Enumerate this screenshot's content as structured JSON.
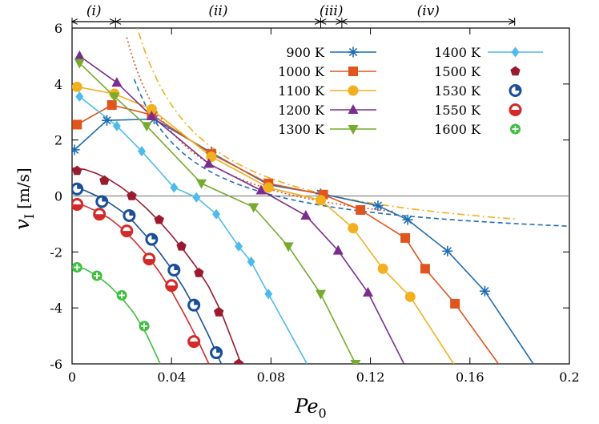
{
  "chart_data": {
    "type": "line",
    "xlabel_main": "Pe",
    "xlabel_sub": "0",
    "ylabel_main": "v",
    "ylabel_sub": "I",
    "ylabel_unit": "[m/s]",
    "xlim": [
      0,
      0.2
    ],
    "ylim": [
      -6,
      6
    ],
    "x_ticks": [
      {
        "v": 0,
        "label": "0"
      },
      {
        "v": 0.04,
        "label": "0.04"
      },
      {
        "v": 0.08,
        "label": "0.08"
      },
      {
        "v": 0.12,
        "label": "0.12"
      },
      {
        "v": 0.16,
        "label": "0.16"
      },
      {
        "v": 0.2,
        "label": "0.2"
      }
    ],
    "y_ticks": [
      {
        "v": 6,
        "label": "6"
      },
      {
        "v": 4,
        "label": "4"
      },
      {
        "v": 2,
        "label": "2"
      },
      {
        "v": 0,
        "label": "0"
      },
      {
        "v": -2,
        "label": "-2"
      },
      {
        "v": -4,
        "label": "-4"
      },
      {
        "v": -6,
        "label": "-6"
      }
    ],
    "zero_line": true,
    "regimes": [
      {
        "label": "(i)",
        "x_start": 0,
        "x_end": 0.0175
      },
      {
        "label": "(ii)",
        "x_start": 0.0175,
        "x_end": 0.1
      },
      {
        "label": "(iii)",
        "x_start": 0.1,
        "x_end": 0.1085
      },
      {
        "label": "(iv)",
        "x_start": 0.1085,
        "x_end": 0.178
      }
    ],
    "series": [
      {
        "name": "900 K",
        "color": "#1f6cb0",
        "marker": "asterisk",
        "marker_x": [
          0.001,
          0.014,
          0.033,
          0.056,
          0.079,
          0.1,
          0.123,
          0.135,
          0.151,
          0.166
        ],
        "marker_y": [
          1.65,
          2.7,
          2.75,
          1.55,
          0.4,
          0.08,
          -0.35,
          -0.85,
          -1.97,
          -3.4
        ],
        "curve_x": [
          0.001,
          0.014,
          0.033,
          0.056,
          0.079,
          0.1,
          0.123,
          0.135,
          0.151,
          0.166,
          0.1855
        ],
        "curve_y": [
          1.65,
          2.7,
          2.75,
          1.55,
          0.4,
          0.08,
          -0.35,
          -0.85,
          -1.97,
          -3.4,
          -6.0
        ]
      },
      {
        "name": "1000 K",
        "color": "#e0541e",
        "marker": "square",
        "marker_x": [
          0.002,
          0.016,
          0.032,
          0.056,
          0.079,
          0.101,
          0.116,
          0.134,
          0.142,
          0.154
        ],
        "marker_y": [
          2.55,
          3.25,
          2.9,
          1.5,
          0.45,
          0.05,
          -0.5,
          -1.5,
          -2.6,
          -3.85
        ],
        "curve_x": [
          0.002,
          0.016,
          0.032,
          0.056,
          0.079,
          0.101,
          0.116,
          0.134,
          0.142,
          0.154,
          0.1715
        ],
        "curve_y": [
          2.55,
          3.25,
          2.9,
          1.5,
          0.45,
          0.05,
          -0.5,
          -1.5,
          -2.6,
          -3.85,
          -6.0
        ]
      },
      {
        "name": "1100 K",
        "color": "#f2b01e",
        "marker": "circle",
        "marker_x": [
          0.002,
          0.017,
          0.032,
          0.056,
          0.079,
          0.1,
          0.113,
          0.125,
          0.136
        ],
        "marker_y": [
          3.9,
          3.65,
          3.1,
          1.4,
          0.3,
          -0.15,
          -1.15,
          -2.6,
          -3.6
        ],
        "curve_x": [
          0.002,
          0.017,
          0.032,
          0.056,
          0.079,
          0.1,
          0.113,
          0.125,
          0.136,
          0.1535
        ],
        "curve_y": [
          3.9,
          3.65,
          3.1,
          1.4,
          0.3,
          -0.15,
          -1.15,
          -2.6,
          -3.6,
          -6.0
        ]
      },
      {
        "name": "1200 K",
        "color": "#7b2d8e",
        "marker": "triangle",
        "marker_x": [
          0.003,
          0.018,
          0.032,
          0.055,
          0.076,
          0.094,
          0.107,
          0.119
        ],
        "marker_y": [
          5.0,
          4.05,
          2.85,
          1.15,
          0.2,
          -0.7,
          -1.95,
          -3.45
        ],
        "curve_x": [
          0.003,
          0.018,
          0.032,
          0.055,
          0.076,
          0.094,
          0.107,
          0.119,
          0.1335
        ],
        "curve_y": [
          5.0,
          4.05,
          2.85,
          1.15,
          0.2,
          -0.7,
          -1.95,
          -3.45,
          -6.0
        ]
      },
      {
        "name": "1300 K",
        "color": "#76ab2f",
        "marker": "triangledown",
        "marker_x": [
          0.003,
          0.017,
          0.03,
          0.052,
          0.073,
          0.087,
          0.1,
          0.114
        ],
        "marker_y": [
          4.75,
          3.55,
          2.5,
          0.45,
          -0.4,
          -1.8,
          -3.5,
          -6.0
        ],
        "curve_x": [
          0.003,
          0.017,
          0.03,
          0.052,
          0.073,
          0.087,
          0.1,
          0.114
        ],
        "curve_y": [
          4.75,
          3.55,
          2.5,
          0.45,
          -0.4,
          -1.8,
          -3.5,
          -6.0
        ]
      },
      {
        "name": "1400 K",
        "color": "#4fbbea",
        "marker": "diamond",
        "marker_x": [
          0.003,
          0.018,
          0.028,
          0.041,
          0.05,
          0.058,
          0.067,
          0.072,
          0.079
        ],
        "marker_y": [
          3.55,
          2.5,
          1.6,
          0.3,
          -0.05,
          -0.65,
          -1.8,
          -2.35,
          -3.5
        ],
        "curve_x": [
          0.003,
          0.018,
          0.028,
          0.041,
          0.05,
          0.058,
          0.067,
          0.072,
          0.079,
          0.0945
        ],
        "curve_y": [
          3.55,
          2.5,
          1.6,
          0.3,
          -0.05,
          -0.65,
          -1.8,
          -2.35,
          -3.5,
          -6.0
        ]
      },
      {
        "name": "1500 K",
        "color": "#9a1a2e",
        "marker": "pentagon",
        "marker_x": [
          0.002,
          0.013,
          0.024,
          0.035,
          0.044,
          0.051,
          0.059,
          0.067
        ],
        "marker_y": [
          0.9,
          0.55,
          0.0,
          -0.85,
          -1.8,
          -2.75,
          -4.15,
          -6.0
        ],
        "curve_x": [
          0.0,
          0.005,
          0.01,
          0.015,
          0.02,
          0.025,
          0.03,
          0.035,
          0.04,
          0.045,
          0.05,
          0.055,
          0.06,
          0.065,
          0.068
        ],
        "curve_y": [
          1.0,
          0.95,
          0.8,
          0.58,
          0.3,
          -0.05,
          -0.45,
          -0.9,
          -1.4,
          -1.95,
          -2.55,
          -3.25,
          -4.15,
          -5.3,
          -6.0
        ]
      },
      {
        "name": "1530 K",
        "color": "#1a4f9a",
        "marker": "circle-quarter",
        "marker_x": [
          0.002,
          0.012,
          0.023,
          0.032,
          0.041,
          0.049,
          0.058
        ],
        "marker_y": [
          0.25,
          -0.2,
          -0.7,
          -1.55,
          -2.65,
          -3.9,
          -5.6
        ],
        "curve_x": [
          0.0,
          0.005,
          0.01,
          0.015,
          0.02,
          0.025,
          0.03,
          0.035,
          0.04,
          0.045,
          0.05,
          0.055,
          0.06
        ],
        "curve_y": [
          0.3,
          0.2,
          0.0,
          -0.25,
          -0.55,
          -0.95,
          -1.45,
          -2.0,
          -2.6,
          -3.3,
          -4.1,
          -5.0,
          -6.0
        ]
      },
      {
        "name": "1550 K",
        "color": "#d42a2a",
        "marker": "circle-half",
        "marker_x": [
          0.002,
          0.011,
          0.022,
          0.031,
          0.04,
          0.049
        ],
        "marker_y": [
          -0.3,
          -0.65,
          -1.25,
          -2.25,
          -3.2,
          -5.2
        ],
        "curve_x": [
          0.0,
          0.005,
          0.01,
          0.015,
          0.02,
          0.025,
          0.03,
          0.035,
          0.04,
          0.045,
          0.05,
          0.055
        ],
        "curve_y": [
          -0.25,
          -0.35,
          -0.55,
          -0.8,
          -1.15,
          -1.6,
          -2.1,
          -2.7,
          -3.4,
          -4.2,
          -5.05,
          -6.0
        ]
      },
      {
        "name": "1600 K",
        "color": "#3fbf3f",
        "marker": "circle-cross",
        "marker_x": [
          0.002,
          0.01,
          0.02,
          0.029
        ],
        "marker_y": [
          -2.55,
          -2.85,
          -3.55,
          -4.65
        ],
        "curve_x": [
          0.0,
          0.005,
          0.01,
          0.015,
          0.02,
          0.025,
          0.03,
          0.0355
        ],
        "curve_y": [
          -2.5,
          -2.6,
          -2.85,
          -3.2,
          -3.65,
          -4.2,
          -4.95,
          -6.0
        ]
      }
    ],
    "reference_curves": [
      {
        "color": "#1f6cb0",
        "dash": "6,4",
        "x_start": 0.025,
        "x_end": 0.2,
        "k": 0.15,
        "x0": 0.082
      },
      {
        "color": "#e0541e",
        "dash": "2,3",
        "x_start": 0.022,
        "x_end": 0.13,
        "k": 0.165,
        "x0": 0.09
      },
      {
        "color": "#f2b01e",
        "dash": "9,4,2,4",
        "x_start": 0.018,
        "x_end": 0.178,
        "k": 0.21,
        "x0": 0.105
      }
    ]
  }
}
